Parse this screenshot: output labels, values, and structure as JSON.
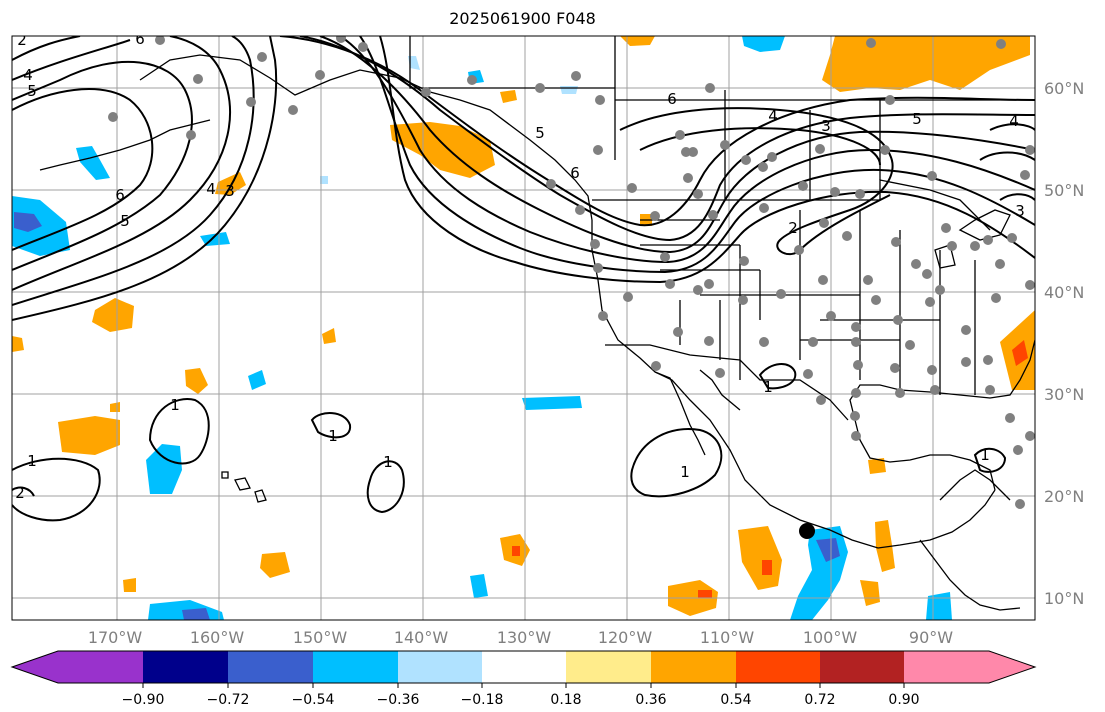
{
  "title": "2025061900 F048",
  "lon_labels": [
    "170°W",
    "160°W",
    "150°W",
    "140°W",
    "130°W",
    "120°W",
    "110°W",
    "100°W",
    "90°W"
  ],
  "lat_labels": [
    "60°N",
    "50°N",
    "40°N",
    "30°N",
    "20°N",
    "10°N"
  ],
  "colorbar": {
    "tick_labels": [
      "−0.90",
      "−0.72",
      "−0.54",
      "−0.36",
      "−0.18",
      "0.18",
      "0.36",
      "0.54",
      "0.72",
      "0.90"
    ],
    "colors": [
      "#9932cc",
      "#00008b",
      "#3a5fcd",
      "#00bfff",
      "#b0e2ff",
      "#ffffff",
      "#ffec8b",
      "#ffa500",
      "#ff4500",
      "#b22222",
      "#ff88aa"
    ]
  },
  "contour_labels": [
    "6",
    "5",
    "4",
    "3",
    "2",
    "1",
    "1",
    "1",
    "1",
    "1",
    "2",
    "3",
    "4",
    "5",
    "6",
    "6",
    "5",
    "4",
    "3",
    "2",
    "4",
    "5",
    "6",
    "1",
    "1"
  ],
  "colors": {
    "land_outline": "#000000",
    "grid": "#a0a0a0",
    "station": "#808080",
    "marker": "#000000",
    "axis_label": "#808080"
  }
}
